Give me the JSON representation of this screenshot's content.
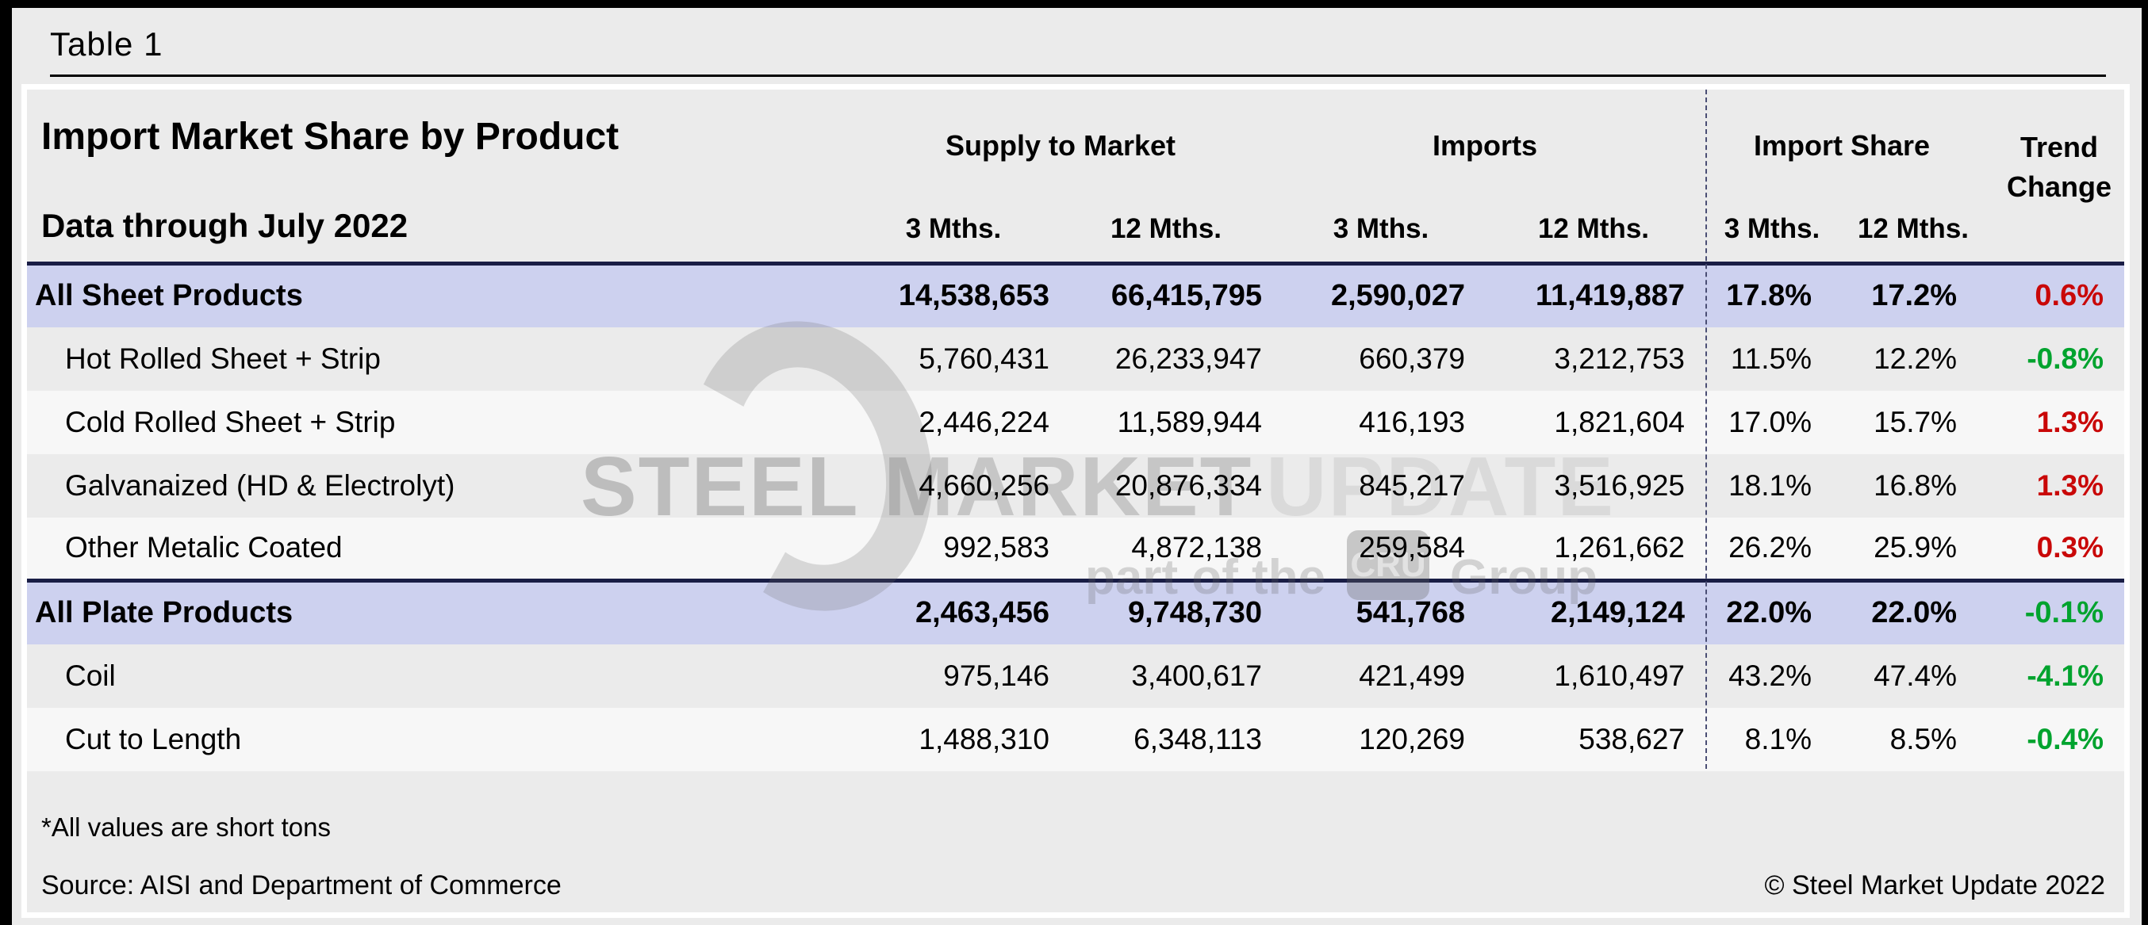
{
  "page": {
    "table_label": "Table 1"
  },
  "header": {
    "title": "Import Market Share by Product",
    "subtitle": "Data through July 2022",
    "groups": {
      "supply": "Supply to Market",
      "imports": "Imports",
      "share": "Import Share",
      "trend_line1": "Trend",
      "trend_line2": "Change"
    },
    "subheaders": [
      "3 Mths.",
      "12 Mths.",
      "3 Mths.",
      "12 Mths.",
      "3 Mths.",
      "12 Mths."
    ]
  },
  "rows": [
    {
      "row_type": "total",
      "label": "All Sheet Products",
      "supply_3m": "14,538,653",
      "supply_12m": "66,415,795",
      "imports_3m": "2,590,027",
      "imports_12m": "11,419,887",
      "share_3m": "17.8%",
      "share_12m": "17.2%",
      "trend_change": "0.6%",
      "trend_direction": "up"
    },
    {
      "row_type": "detail",
      "label": "Hot Rolled Sheet + Strip",
      "supply_3m": "5,760,431",
      "supply_12m": "26,233,947",
      "imports_3m": "660,379",
      "imports_12m": "3,212,753",
      "share_3m": "11.5%",
      "share_12m": "12.2%",
      "trend_change": "-0.8%",
      "trend_direction": "down"
    },
    {
      "row_type": "detail",
      "label": "Cold Rolled Sheet + Strip",
      "supply_3m": "2,446,224",
      "supply_12m": "11,589,944",
      "imports_3m": "416,193",
      "imports_12m": "1,821,604",
      "share_3m": "17.0%",
      "share_12m": "15.7%",
      "trend_change": "1.3%",
      "trend_direction": "up"
    },
    {
      "row_type": "detail",
      "label": "Galvanaized (HD & Electrolyt)",
      "supply_3m": "4,660,256",
      "supply_12m": "20,876,334",
      "imports_3m": "845,217",
      "imports_12m": "3,516,925",
      "share_3m": "18.1%",
      "share_12m": "16.8%",
      "trend_change": "1.3%",
      "trend_direction": "up"
    },
    {
      "row_type": "detail",
      "label": "Other Metalic Coated",
      "supply_3m": "992,583",
      "supply_12m": "4,872,138",
      "imports_3m": "259,584",
      "imports_12m": "1,261,662",
      "share_3m": "26.2%",
      "share_12m": "25.9%",
      "trend_change": "0.3%",
      "trend_direction": "up"
    },
    {
      "row_type": "total",
      "label": "All Plate Products",
      "supply_3m": "2,463,456",
      "supply_12m": "9,748,730",
      "imports_3m": "541,768",
      "imports_12m": "2,149,124",
      "share_3m": "22.0%",
      "share_12m": "22.0%",
      "trend_change": "-0.1%",
      "trend_direction": "down"
    },
    {
      "row_type": "detail",
      "label": "Coil",
      "supply_3m": "975,146",
      "supply_12m": "3,400,617",
      "imports_3m": "421,499",
      "imports_12m": "1,610,497",
      "share_3m": "43.2%",
      "share_12m": "47.4%",
      "trend_change": "-4.1%",
      "trend_direction": "down"
    },
    {
      "row_type": "detail",
      "label": "Cut to Length",
      "supply_3m": "1,488,310",
      "supply_12m": "6,348,113",
      "imports_3m": "120,269",
      "imports_12m": "538,627",
      "share_3m": "8.1%",
      "share_12m": "8.5%",
      "trend_change": "-0.4%",
      "trend_direction": "down"
    }
  ],
  "footer": {
    "note": "*All values are short tons",
    "source": "Source: AISI and Department of Commerce",
    "copyright": "© Steel Market Update 2022"
  },
  "watermark": {
    "steel": "STEEL",
    "market": "MARKET",
    "update": "UPDATE",
    "tagline_prefix": "part of the",
    "logo_text": "CRU",
    "tagline_suffix": "Group"
  },
  "colors": {
    "trend_up": "#c90808",
    "trend_down": "#00a32e",
    "total_row_bg": "#cdd1ef",
    "row_gray_bg": "#ebebeb",
    "row_light_bg": "#f7f7f7",
    "navy_rule": "#191d45",
    "panel_bg": "#ebebeb",
    "frame": "#000000"
  },
  "chart_data": {
    "type": "table",
    "title": "Import Market Share by Product",
    "subtitle": "Data through July 2022",
    "column_groups": [
      "Supply to Market",
      "Imports",
      "Import Share",
      "Trend Change"
    ],
    "columns": [
      "Product",
      "Supply 3 Mths.",
      "Supply 12 Mths.",
      "Imports 3 Mths.",
      "Imports 12 Mths.",
      "Import Share 3 Mths.",
      "Import Share 12 Mths.",
      "Trend Change"
    ],
    "rows": [
      [
        "All Sheet Products",
        14538653,
        66415795,
        2590027,
        11419887,
        "17.8%",
        "17.2%",
        "0.6%"
      ],
      [
        "Hot Rolled Sheet + Strip",
        5760431,
        26233947,
        660379,
        3212753,
        "11.5%",
        "12.2%",
        "-0.8%"
      ],
      [
        "Cold Rolled Sheet + Strip",
        2446224,
        11589944,
        416193,
        1821604,
        "17.0%",
        "15.7%",
        "1.3%"
      ],
      [
        "Galvanaized (HD & Electrolyt)",
        4660256,
        20876334,
        845217,
        3516925,
        "18.1%",
        "16.8%",
        "1.3%"
      ],
      [
        "Other Metalic Coated",
        992583,
        4872138,
        259584,
        1261662,
        "26.2%",
        "25.9%",
        "0.3%"
      ],
      [
        "All Plate Products",
        2463456,
        9748730,
        541768,
        2149124,
        "22.0%",
        "22.0%",
        "-0.1%"
      ],
      [
        "Coil",
        975146,
        3400617,
        421499,
        1610497,
        "43.2%",
        "47.4%",
        "-4.1%"
      ],
      [
        "Cut to Length",
        1488310,
        6348113,
        120269,
        538627,
        "8.1%",
        "8.5%",
        "-0.4%"
      ]
    ],
    "units": "short tons",
    "notes": "Trend Change shown red when import share rising, green when falling"
  }
}
